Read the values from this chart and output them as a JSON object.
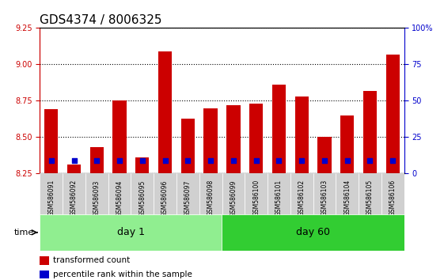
{
  "title": "GDS4374 / 8006325",
  "samples": [
    "GSM586091",
    "GSM586092",
    "GSM586093",
    "GSM586094",
    "GSM586095",
    "GSM586096",
    "GSM586097",
    "GSM586098",
    "GSM586099",
    "GSM586100",
    "GSM586101",
    "GSM586102",
    "GSM586103",
    "GSM586104",
    "GSM586105",
    "GSM586106"
  ],
  "bar_values": [
    8.69,
    8.31,
    8.43,
    8.75,
    8.36,
    9.09,
    8.63,
    8.7,
    8.72,
    8.73,
    8.86,
    8.78,
    8.5,
    8.65,
    8.82,
    9.07
  ],
  "percentile_values": [
    9.12,
    9.08,
    9.1,
    9.14,
    9.09,
    9.17,
    9.1,
    9.11,
    9.11,
    9.11,
    9.15,
    9.12,
    9.08,
    9.09,
    9.12,
    9.16
  ],
  "bar_color": "#cc0000",
  "percentile_color": "#0000cc",
  "ylim_left": [
    8.25,
    9.25
  ],
  "ylim_right": [
    0,
    100
  ],
  "yticks_left": [
    8.25,
    8.5,
    8.75,
    9.0,
    9.25
  ],
  "yticks_right": [
    0,
    25,
    50,
    75,
    100
  ],
  "day1_samples": 8,
  "day60_samples": 8,
  "day1_label": "day 1",
  "day60_label": "day 60",
  "day1_color": "#90ee90",
  "day60_color": "#32cd32",
  "time_label": "time",
  "legend1": "transformed count",
  "legend2": "percentile rank within the sample",
  "bg_color": "#f0f0f0",
  "bar_width": 0.6,
  "grid_color": "#000000",
  "title_fontsize": 11,
  "tick_fontsize": 7,
  "axis_label_color_left": "#cc0000",
  "axis_label_color_right": "#0000cc"
}
